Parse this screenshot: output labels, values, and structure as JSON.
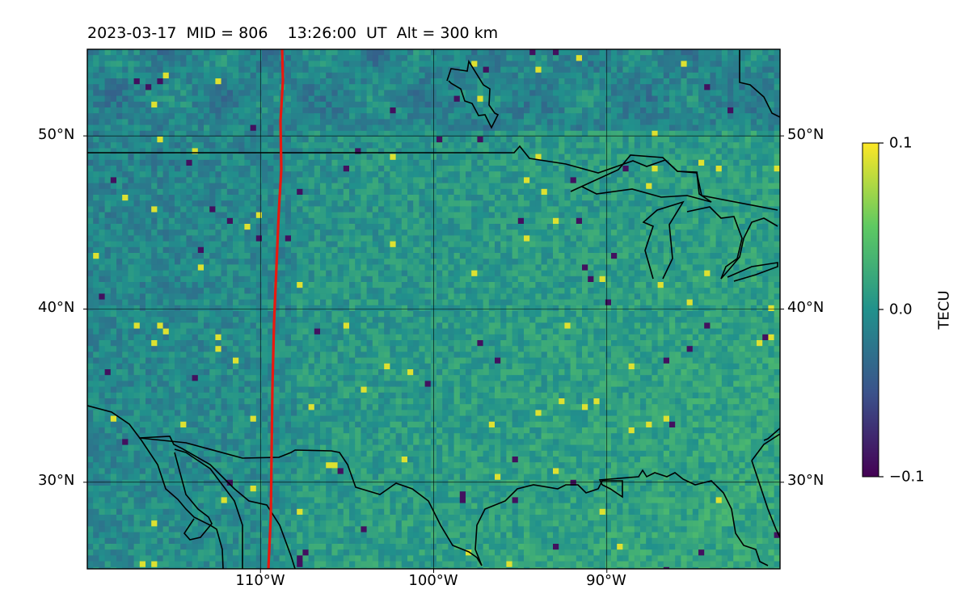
{
  "title": {
    "date": "2023-03-17",
    "mid": "MID = 806",
    "time": "13:26:00  UT",
    "alt": "Alt = 300 km"
  },
  "map": {
    "lon_range": [
      -120,
      -80
    ],
    "lat_range": [
      25,
      55
    ],
    "lat_ticks": [
      {
        "value": 30,
        "label": "30°N"
      },
      {
        "value": 40,
        "label": "40°N"
      },
      {
        "value": 50,
        "label": "50°N"
      }
    ],
    "lon_ticks": [
      {
        "value": -110,
        "label": "110°W"
      },
      {
        "value": -100,
        "label": "100°W"
      },
      {
        "value": -90,
        "label": "90°W"
      }
    ],
    "terminator_color": "#e8190f",
    "colormap": "viridis"
  },
  "colorbar": {
    "title": "TECU",
    "min": -0.1,
    "max": 0.1,
    "ticks": [
      {
        "value": 0.1,
        "label": "0.1"
      },
      {
        "value": 0.0,
        "label": "0.0"
      },
      {
        "value": -0.1,
        "label": "−0.1"
      }
    ]
  }
}
